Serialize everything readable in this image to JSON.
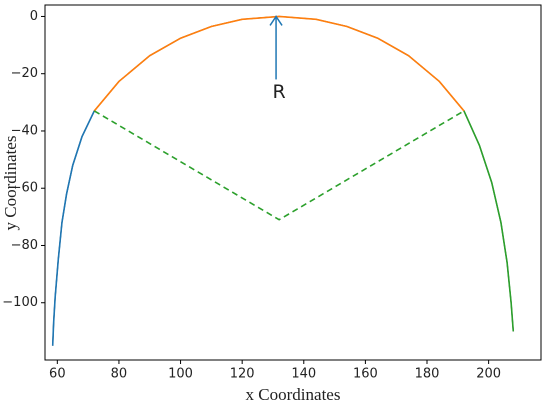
{
  "chart_data": {
    "type": "line",
    "x_label": "x  Coordinates",
    "y_label": "y  Coordinates",
    "xlim": [
      56,
      217
    ],
    "ylim": [
      -120,
      4
    ],
    "xticks": [
      60,
      80,
      100,
      120,
      140,
      160,
      180,
      200
    ],
    "yticks": [
      0,
      {
        "value": -20,
        "label": "−20"
      },
      {
        "value": -40,
        "label": "−40"
      },
      {
        "value": -60,
        "label": "−60"
      },
      {
        "value": -80,
        "label": "−80"
      },
      {
        "value": -100,
        "label": "−100"
      }
    ],
    "series": [
      {
        "color": "#000000",
        "linestyle": "solid",
        "x": [
          58.5,
          58.8,
          59.3,
          60.3,
          61.5,
          63,
          65,
          68,
          72,
          80,
          90,
          100,
          110,
          120,
          132,
          144,
          154,
          164,
          174,
          184,
          192,
          197,
          201,
          204,
          206,
          207.3,
          208
        ],
        "values": [
          -115,
          -107,
          -98,
          -85,
          -72,
          -62,
          -52,
          -42,
          -33,
          -22.7,
          -13.7,
          -7.6,
          -3.5,
          -1,
          0,
          -1,
          -3.5,
          -7.6,
          -13.7,
          -22.7,
          -33,
          -45,
          -58,
          -72,
          -86,
          -100,
          -110
        ]
      },
      {
        "color": "#1f77b4",
        "linestyle": "solid",
        "x": [
          58.5,
          58.8,
          59.3,
          60.3,
          61.5,
          63,
          65,
          68,
          72
        ],
        "values": [
          -115,
          -107,
          -98,
          -85,
          -72,
          -62,
          -52,
          -42,
          -33
        ]
      },
      {
        "color": "#ff7f0e",
        "linestyle": "solid",
        "x": [
          72,
          80,
          90,
          100,
          110,
          120,
          132,
          144,
          154,
          164,
          174,
          184,
          192
        ],
        "values": [
          -33,
          -22.7,
          -13.7,
          -7.6,
          -3.5,
          -1,
          0,
          -1,
          -3.5,
          -7.6,
          -13.7,
          -22.7,
          -33
        ]
      },
      {
        "color": "#2ca02c",
        "linestyle": "solid",
        "x": [
          192,
          197,
          201,
          204,
          206,
          207.3,
          208
        ],
        "values": [
          -33,
          -45,
          -58,
          -72,
          -86,
          -100,
          -110
        ]
      },
      {
        "color": "#2ca02c",
        "linestyle": "dashed",
        "x": [
          72,
          132,
          192
        ],
        "values": [
          -33,
          -71,
          -33
        ]
      }
    ],
    "annotation": {
      "text": "R",
      "color": "#1f77b4",
      "xy": [
        131,
        0
      ],
      "xytext": [
        131,
        -22
      ]
    }
  }
}
